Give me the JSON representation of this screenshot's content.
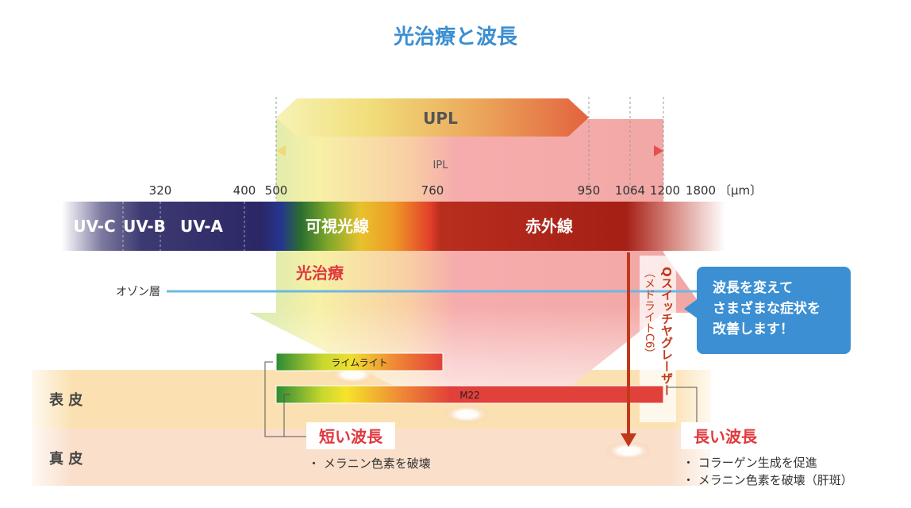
{
  "title": "光治療と波長",
  "upl_label": "UPL",
  "ipl_label": "IPL",
  "wavelengths": {
    "w320": "320",
    "w400": "400",
    "w500": "500",
    "w760": "760",
    "w950": "950",
    "w1064": "1064",
    "w1200": "1200",
    "w1800": "1800",
    "unit": "〔μm〕"
  },
  "bands": {
    "uvc": "UV-C",
    "uvb": "UV-B",
    "uva": "UV-A",
    "visible": "可視光線",
    "infrared": "赤外線"
  },
  "phototherapy_label": "光治療",
  "ozone_label": "オゾン層",
  "laser_paren": "（メドライトC6）",
  "laser_label": "Qスイッチヤグレーザー",
  "bubble_lines": [
    "波長を変えて",
    "さまざまな症状を",
    "改善します！"
  ],
  "bars": {
    "limelight": "ライムライト",
    "m22": "M22"
  },
  "skin": {
    "epidermis": "表 皮",
    "dermis": "真 皮"
  },
  "short_wave": {
    "label": "短い波長",
    "bullets": [
      "・ メラニン色素を破壊"
    ]
  },
  "long_wave": {
    "label": "長い波長",
    "bullets": [
      "・ コラーゲン生成を促進",
      "・ メラニン色素を破壊（肝斑）"
    ]
  },
  "colors": {
    "title": "#3b8fd2",
    "accent": "#e0383e",
    "bubble": "#3b8fd2",
    "laser": "#c0391b"
  }
}
